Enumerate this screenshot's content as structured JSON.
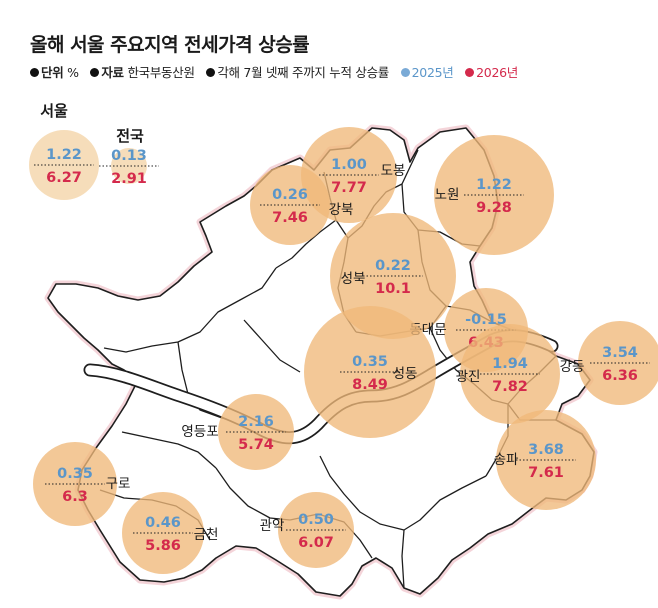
{
  "title": "올해 서울 주요지역 전세가격 상승률",
  "meta": {
    "unit_label": "단위",
    "unit_value": "%",
    "source_label": "자료",
    "source_value": "한국부동산원",
    "note": "각해 7월 넷째 주까지 누적 상승률",
    "legend_2025": "2025년",
    "legend_2026": "2026년"
  },
  "colors": {
    "bubble_2026": "#f0b97a",
    "bubble_2025": "#f5d9b3",
    "value_2025": "#5b96c9",
    "value_2026": "#d42a4c",
    "map_fill": "#ffffff",
    "map_stroke": "#1e1e1e",
    "river": "#ffffff"
  },
  "chart_data": {
    "type": "bubble-map",
    "title": "올해 서울 주요지역 전세가격 상승률",
    "unit": "%",
    "series": [
      {
        "name": "2025년"
      },
      {
        "name": "2026년"
      }
    ],
    "regions": [
      {
        "name": "서울",
        "v2025": 1.22,
        "v2026": 6.27
      },
      {
        "name": "전국",
        "v2025": 0.13,
        "v2026": 2.91
      },
      {
        "name": "도봉",
        "v2025": 1.0,
        "v2026": 7.77
      },
      {
        "name": "강북",
        "v2025": 0.26,
        "v2026": 7.46
      },
      {
        "name": "노원",
        "v2025": 1.22,
        "v2026": 9.28
      },
      {
        "name": "성북",
        "v2025": 0.22,
        "v2026": 10.1
      },
      {
        "name": "동대문",
        "v2025": -0.15,
        "v2026": 6.43
      },
      {
        "name": "성동",
        "v2025": 0.35,
        "v2026": 8.49
      },
      {
        "name": "광진",
        "v2025": 1.94,
        "v2026": 7.82
      },
      {
        "name": "강동",
        "v2025": 3.54,
        "v2026": 6.36
      },
      {
        "name": "영등포",
        "v2025": 2.16,
        "v2026": 5.74
      },
      {
        "name": "송파",
        "v2025": 3.68,
        "v2026": 7.61
      },
      {
        "name": "구로",
        "v2025": 0.35,
        "v2026": 6.3
      },
      {
        "name": "금천",
        "v2025": 0.46,
        "v2026": 5.86
      },
      {
        "name": "관악",
        "v2025": 0.5,
        "v2026": 6.07
      }
    ]
  }
}
